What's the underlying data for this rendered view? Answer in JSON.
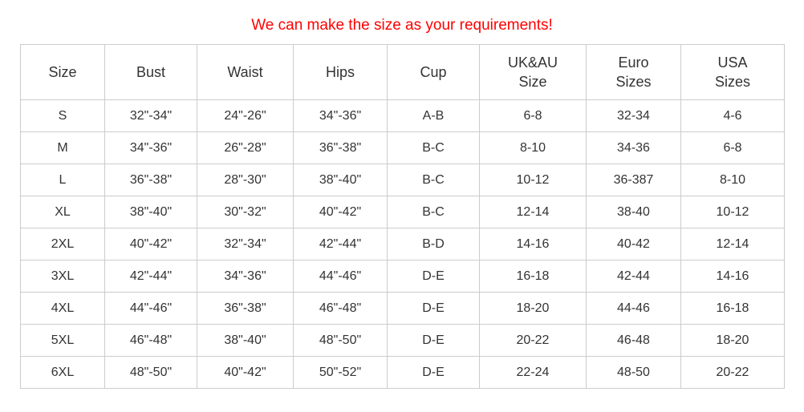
{
  "title": {
    "text": "We can make the size as your requirements!",
    "color": "#ff0000"
  },
  "chart_data": {
    "type": "table",
    "title": "We can make the size as your requirements!",
    "headers": [
      "Size",
      "Bust",
      "Waist",
      "Hips",
      "Cup",
      "UK&AU Size",
      "Euro Sizes",
      "USA Sizes"
    ],
    "rows": [
      [
        "S",
        "32\"-34\"",
        "24\"-26\"",
        "34\"-36\"",
        "A-B",
        "6-8",
        "32-34",
        "4-6"
      ],
      [
        "M",
        "34\"-36\"",
        "26\"-28\"",
        "36\"-38\"",
        "B-C",
        "8-10",
        "34-36",
        "6-8"
      ],
      [
        "L",
        "36\"-38\"",
        "28\"-30\"",
        "38\"-40\"",
        "B-C",
        "10-12",
        "36-387",
        "8-10"
      ],
      [
        "XL",
        "38\"-40\"",
        "30\"-32\"",
        "40\"-42\"",
        "B-C",
        "12-14",
        "38-40",
        "10-12"
      ],
      [
        "2XL",
        "40\"-42\"",
        "32\"-34\"",
        "42\"-44\"",
        "B-D",
        "14-16",
        "40-42",
        "12-14"
      ],
      [
        "3XL",
        "42\"-44\"",
        "34\"-36\"",
        "44\"-46\"",
        "D-E",
        "16-18",
        "42-44",
        "14-16"
      ],
      [
        "4XL",
        "44\"-46\"",
        "36\"-38\"",
        "46\"-48\"",
        "D-E",
        "18-20",
        "44-46",
        "16-18"
      ],
      [
        "5XL",
        "46\"-48\"",
        "38\"-40\"",
        "48\"-50\"",
        "D-E",
        "20-22",
        "46-48",
        "18-20"
      ],
      [
        "6XL",
        "48\"-50\"",
        "40\"-42\"",
        "50\"-52\"",
        "D-E",
        "22-24",
        "48-50",
        "20-22"
      ]
    ],
    "layout": {
      "grid": true,
      "border_color": "#cccccc",
      "text_color": "#333333",
      "title_color": "#ff0000"
    }
  }
}
